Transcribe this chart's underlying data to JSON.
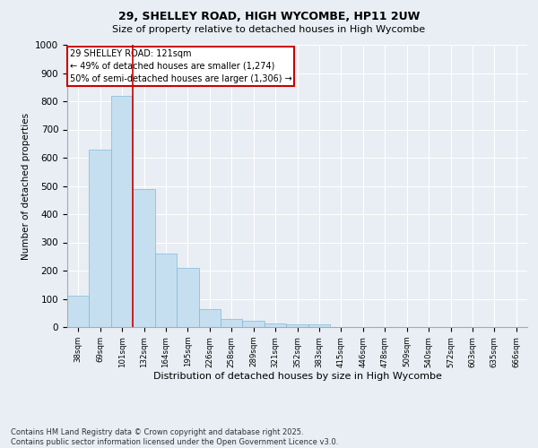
{
  "title_line1": "29, SHELLEY ROAD, HIGH WYCOMBE, HP11 2UW",
  "title_line2": "Size of property relative to detached houses in High Wycombe",
  "xlabel": "Distribution of detached houses by size in High Wycombe",
  "ylabel": "Number of detached properties",
  "categories": [
    "38sqm",
    "69sqm",
    "101sqm",
    "132sqm",
    "164sqm",
    "195sqm",
    "226sqm",
    "258sqm",
    "289sqm",
    "321sqm",
    "352sqm",
    "383sqm",
    "415sqm",
    "446sqm",
    "478sqm",
    "509sqm",
    "540sqm",
    "572sqm",
    "603sqm",
    "635sqm",
    "666sqm"
  ],
  "values": [
    110,
    630,
    820,
    490,
    260,
    210,
    65,
    27,
    22,
    13,
    10,
    8,
    0,
    0,
    0,
    0,
    0,
    0,
    0,
    0,
    0
  ],
  "bar_color": "#c6dff0",
  "bar_edge_color": "#7fb9d8",
  "vline_x": 2.5,
  "vline_color": "#cc0000",
  "annotation_text": "29 SHELLEY ROAD: 121sqm\n← 49% of detached houses are smaller (1,274)\n50% of semi-detached houses are larger (1,306) →",
  "annotation_box_facecolor": "#ffffff",
  "annotation_box_edgecolor": "#cc0000",
  "ylim": [
    0,
    1000
  ],
  "yticks": [
    0,
    100,
    200,
    300,
    400,
    500,
    600,
    700,
    800,
    900,
    1000
  ],
  "background_color": "#e8eef4",
  "grid_color": "#ffffff",
  "footer": "Contains HM Land Registry data © Crown copyright and database right 2025.\nContains public sector information licensed under the Open Government Licence v3.0."
}
